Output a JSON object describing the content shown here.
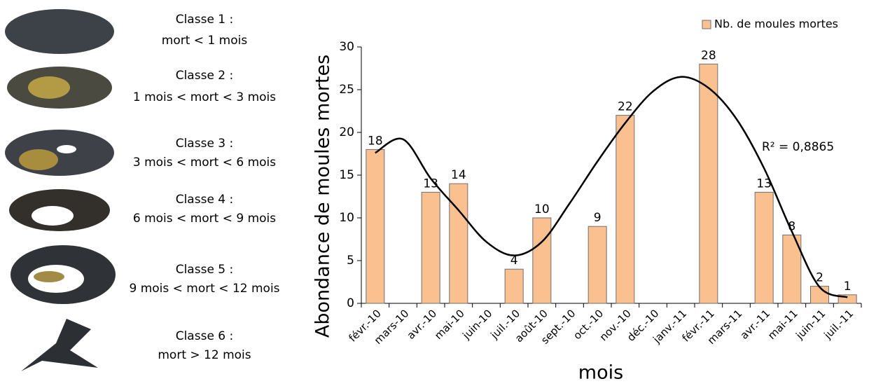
{
  "classes": [
    {
      "title": "Classe 1 :",
      "range": "mort < 1 mois"
    },
    {
      "title": "Classe 2 :",
      "range": "1 mois < mort < 3 mois"
    },
    {
      "title": "Classe 3 :",
      "range": "3 mois < mort < 6 mois"
    },
    {
      "title": "Classe 4 :",
      "range": "6 mois < mort < 9 mois"
    },
    {
      "title": "Classe 5 :",
      "range": "9 mois < mort < 12 mois"
    },
    {
      "title": "Classe 6 :",
      "range": "mort > 12 mois"
    }
  ],
  "chart_data": {
    "type": "bar",
    "x_label": "mois",
    "y_label": "Abondance de moules mortes",
    "categories": [
      "févr.-10",
      "mars-10",
      "avr.-10",
      "mai-10",
      "juin-10",
      "juil.-10",
      "août-10",
      "sept.-10",
      "oct.-10",
      "nov.-10",
      "déc.-10",
      "janv.-11",
      "févr.-11",
      "mars-11",
      "avr.-11",
      "mai-11",
      "juin-11",
      "juil.-11"
    ],
    "series": [
      {
        "name": "Nb. de moules mortes",
        "color": "#fac090",
        "values": [
          18,
          null,
          13,
          14,
          null,
          4,
          10,
          null,
          9,
          22,
          null,
          null,
          28,
          null,
          13,
          8,
          2,
          1
        ]
      }
    ],
    "trend": {
      "label": "R² = 0,8865",
      "color": "#000000",
      "values": [
        17.6,
        19.2,
        14.6,
        10.9,
        7.2,
        5.6,
        7.2,
        11.7,
        16.6,
        21.1,
        24.8,
        26.5,
        25.2,
        21.6,
        15.8,
        8.4,
        1.9,
        0.7
      ]
    },
    "ylim": [
      0,
      30
    ],
    "yticks": [
      0,
      5,
      10,
      15,
      20,
      25,
      30
    ],
    "legend": "top-right"
  }
}
